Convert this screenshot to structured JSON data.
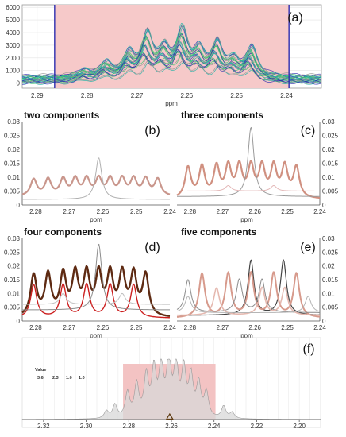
{
  "chart_data": [
    {
      "id": "a",
      "type": "line",
      "panel_label": "(a)",
      "title": "",
      "xlabel": "ppm",
      "x_ticks": [
        2.29,
        2.28,
        2.27,
        2.26,
        2.25,
        2.24
      ],
      "xlim": [
        2.293,
        2.233
      ],
      "y_ticks": [
        0,
        1000,
        2000,
        3000,
        4000,
        5000,
        6000
      ],
      "ylim": [
        -400,
        6200
      ],
      "y_tick_side": "left",
      "grid": true,
      "highlight_region": {
        "from": 2.2865,
        "to": 2.2395,
        "color": "#f6c9c9"
      },
      "region_line_color": "#2c2cae",
      "series_colors": [
        "#19b3a6",
        "#2c2cae",
        "#36c66d",
        "#8f8f8f"
      ],
      "peaks": [
        {
          "ppm": 2.2806,
          "height": 400
        },
        {
          "ppm": 2.2763,
          "height": 800
        },
        {
          "ppm": 2.2718,
          "height": 1300
        },
        {
          "ppm": 2.2682,
          "height": 2400
        },
        {
          "ppm": 2.2648,
          "height": 1500
        },
        {
          "ppm": 2.2612,
          "height": 2600
        },
        {
          "ppm": 2.2578,
          "height": 1400
        },
        {
          "ppm": 2.2542,
          "height": 1900
        },
        {
          "ppm": 2.2508,
          "height": 900
        },
        {
          "ppm": 2.2472,
          "height": 1700
        }
      ],
      "baseline": 700
    },
    {
      "id": "b",
      "type": "line",
      "title": "two components",
      "panel_label": "(b)",
      "xlabel": "ppm",
      "x_ticks": [
        2.28,
        2.27,
        2.26,
        2.25,
        2.24
      ],
      "xlim": [
        2.284,
        2.24
      ],
      "y_ticks": [
        0,
        0.005,
        0.01,
        0.015,
        0.02,
        0.025,
        0.03
      ],
      "ylim": [
        0,
        0.03
      ],
      "y_tick_side": "left",
      "grid": false,
      "components": [
        {
          "color": "#c9968c",
          "width": 2.2,
          "base": 0.003,
          "amp": 0.006,
          "peaks_ppm": [
            2.2806,
            2.2763,
            2.2718,
            2.2682,
            2.2648,
            2.2612,
            2.2578,
            2.2542,
            2.2508,
            2.2472,
            2.2436
          ]
        },
        {
          "color": "#b0b0b0",
          "width": 1.0,
          "base": 0.002,
          "amp": 0.015,
          "peaks_ppm": [
            2.2612
          ]
        }
      ]
    },
    {
      "id": "c",
      "type": "line",
      "title": "three components",
      "panel_label": "(c)",
      "xlabel": "ppm",
      "x_ticks": [
        2.28,
        2.27,
        2.26,
        2.25,
        2.24
      ],
      "xlim": [
        2.284,
        2.24
      ],
      "y_ticks": [
        0,
        0.005,
        0.01,
        0.015,
        0.02,
        0.025,
        0.03
      ],
      "ylim": [
        0,
        0.03
      ],
      "y_tick_side": "right",
      "grid": false,
      "components": [
        {
          "color": "#d09080",
          "width": 2.2,
          "base": 0.002,
          "amp": 0.011,
          "peaks_ppm": [
            2.2806,
            2.2763,
            2.2718,
            2.2682,
            2.2648,
            2.2612,
            2.2578,
            2.2542,
            2.2508,
            2.2472
          ]
        },
        {
          "color": "#9a9a9a",
          "width": 1.0,
          "base": 0.003,
          "amp": 0.025,
          "peaks_ppm": [
            2.2612
          ]
        },
        {
          "color": "#e3b7b7",
          "width": 1.0,
          "base": 0.005,
          "amp": 0.002,
          "peaks_ppm": [
            2.2682,
            2.2542
          ]
        }
      ]
    },
    {
      "id": "d",
      "type": "line",
      "title": "four components",
      "panel_label": "(d)",
      "xlabel": "ppm",
      "x_ticks": [
        2.28,
        2.27,
        2.26,
        2.25,
        2.24
      ],
      "xlim": [
        2.284,
        2.24
      ],
      "y_ticks": [
        0,
        0.005,
        0.01,
        0.015,
        0.02,
        0.025,
        0.03
      ],
      "ylim": [
        0,
        0.03
      ],
      "y_tick_side": "left",
      "grid": false,
      "components": [
        {
          "color": "#5e2a12",
          "width": 2.4,
          "base": 0.001,
          "amp": 0.015,
          "peaks_ppm": [
            2.2806,
            2.2763,
            2.2718,
            2.2682,
            2.2648,
            2.2612,
            2.2578,
            2.2542,
            2.2508,
            2.2472
          ]
        },
        {
          "color": "#cc1f1f",
          "width": 1.4,
          "base": 0.001,
          "amp": 0.012,
          "peaks_ppm": [
            2.2806,
            2.2718,
            2.2648,
            2.2578,
            2.2508
          ]
        },
        {
          "color": "#8c8c8c",
          "width": 1.0,
          "base": 0.004,
          "amp": 0.024,
          "peaks_ppm": [
            2.2612
          ]
        },
        {
          "color": "#c0c0c0",
          "width": 1.0,
          "base": 0.006,
          "amp": 0.004,
          "peaks_ppm": [
            2.2718,
            2.2542
          ]
        }
      ]
    },
    {
      "id": "e",
      "type": "line",
      "title": "five components",
      "panel_label": "(e)",
      "xlabel": "ppm",
      "x_ticks": [
        2.28,
        2.27,
        2.26,
        2.25,
        2.24
      ],
      "xlim": [
        2.284,
        2.24
      ],
      "y_ticks": [
        0,
        0.005,
        0.01,
        0.015,
        0.02,
        0.025,
        0.03
      ],
      "ylim": [
        0,
        0.03
      ],
      "y_tick_side": "right",
      "grid": false,
      "components": [
        {
          "color": "#444444",
          "width": 1.2,
          "base": 0.002,
          "amp": 0.02,
          "peaks_ppm": [
            2.2612,
            2.2512
          ]
        },
        {
          "color": "#d79a8c",
          "width": 2.0,
          "base": 0.001,
          "amp": 0.016,
          "peaks_ppm": [
            2.2763,
            2.2682,
            2.2612,
            2.2542,
            2.2472
          ]
        },
        {
          "color": "#8a8a8a",
          "width": 1.0,
          "base": 0.003,
          "amp": 0.012,
          "peaks_ppm": [
            2.2806,
            2.2648,
            2.2578
          ]
        },
        {
          "color": "#e5b9b0",
          "width": 1.6,
          "base": 0.002,
          "amp": 0.01,
          "peaks_ppm": [
            2.2718,
            2.2578,
            2.2508
          ]
        },
        {
          "color": "#b5b5b5",
          "width": 1.0,
          "base": 0.003,
          "amp": 0.006,
          "peaks_ppm": [
            2.2806,
            2.2436
          ]
        }
      ]
    },
    {
      "id": "f",
      "type": "area",
      "panel_label": "(f)",
      "title": "",
      "x_ticks": [
        2.32,
        2.3,
        2.28,
        2.26,
        2.24,
        2.22,
        2.2
      ],
      "xlim": [
        2.33,
        2.19
      ],
      "grid": true,
      "marker": {
        "ppm": 2.2608,
        "shape": "triangle"
      },
      "highlight_region": {
        "from": 2.2827,
        "to": 2.2393,
        "color": "#f3c3c3"
      },
      "legend": {
        "title": "Value",
        "entries": [
          "3.6",
          "2.3",
          "1.0",
          "1.0"
        ]
      },
      "peaks": [
        {
          "ppm": 2.2806,
          "height": 0.42
        },
        {
          "ppm": 2.2763,
          "height": 0.55
        },
        {
          "ppm": 2.2718,
          "height": 0.68
        },
        {
          "ppm": 2.2682,
          "height": 0.78
        },
        {
          "ppm": 2.2648,
          "height": 0.84
        },
        {
          "ppm": 2.2612,
          "height": 0.95
        },
        {
          "ppm": 2.2578,
          "height": 0.86
        },
        {
          "ppm": 2.2542,
          "height": 0.78
        },
        {
          "ppm": 2.2508,
          "height": 0.66
        },
        {
          "ppm": 2.2472,
          "height": 0.55
        },
        {
          "ppm": 2.2436,
          "height": 0.42
        }
      ],
      "side_peaks": [
        {
          "ppm": 2.2905,
          "height": 0.12
        },
        {
          "ppm": 2.2865,
          "height": 0.22
        },
        {
          "ppm": 2.2355,
          "height": 0.2
        },
        {
          "ppm": 2.2315,
          "height": 0.1
        }
      ]
    }
  ]
}
